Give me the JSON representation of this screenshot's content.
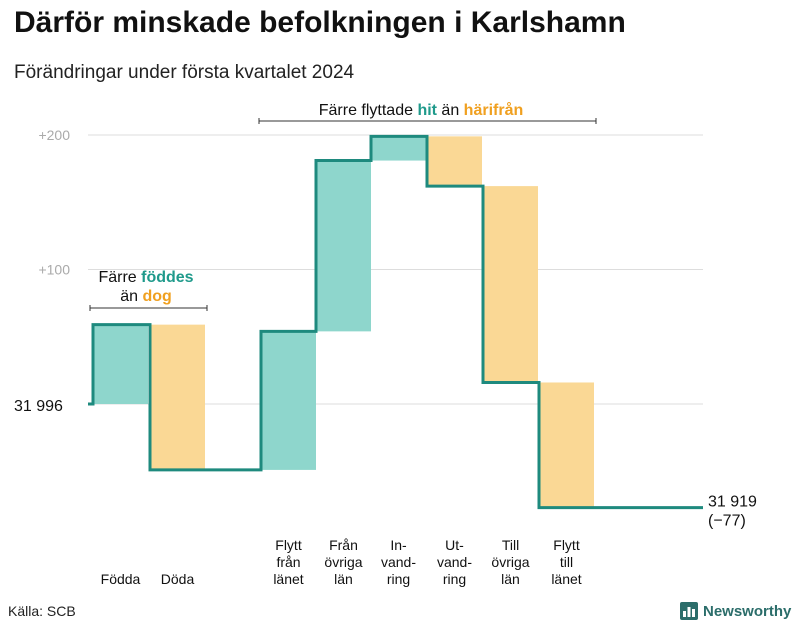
{
  "header": {
    "title": "Därför minskade befolkningen i Karlshamn",
    "subtitle": "Förändringar under första kvartalet 2024"
  },
  "colors": {
    "positive": "#8ed6cc",
    "negative": "#fad895",
    "line": "#1e8a7e",
    "grid": "#dddddd",
    "tick_label": "#aaaaaa",
    "hit_text": "#1f9a8b",
    "harifran_text": "#f0a020"
  },
  "chart_data": {
    "type": "waterfall",
    "start_value": 31996,
    "start_label": "31  996",
    "end_value": 31919,
    "end_label": "31 919",
    "end_change_label": "(−77)",
    "ylim": [
      -76,
      201
    ],
    "yticks": [
      {
        "value": 100,
        "label": "+100"
      },
      {
        "value": 200,
        "label": "+200"
      }
    ],
    "steps": [
      {
        "label": [
          "Födda"
        ],
        "change": 59
      },
      {
        "label": [
          "Döda"
        ],
        "change": -108
      },
      {
        "label": [
          "Flytt",
          "från",
          "länet"
        ],
        "change": 103
      },
      {
        "label": [
          "Från",
          "övriga",
          "län"
        ],
        "change": 127
      },
      {
        "label": [
          "In-",
          "vand-",
          "ring"
        ],
        "change": 18
      },
      {
        "label": [
          "Ut-",
          "vand-",
          "ring"
        ],
        "change": -37
      },
      {
        "label": [
          "Till",
          "övriga",
          "län"
        ],
        "change": -146
      },
      {
        "label": [
          "Flytt",
          "till",
          "länet"
        ],
        "change": -93
      }
    ]
  },
  "annotations": {
    "births": {
      "line1_prefix": "Färre ",
      "line1_highlight": "föddes",
      "line2_prefix": "än ",
      "line2_highlight": "dog"
    },
    "moves": {
      "prefix": "Färre flyttade ",
      "highlight1": "hit",
      "middle": " än ",
      "highlight2": "härifrån"
    }
  },
  "footer": {
    "source": "Källa: SCB",
    "brand": "Newsworthy"
  }
}
